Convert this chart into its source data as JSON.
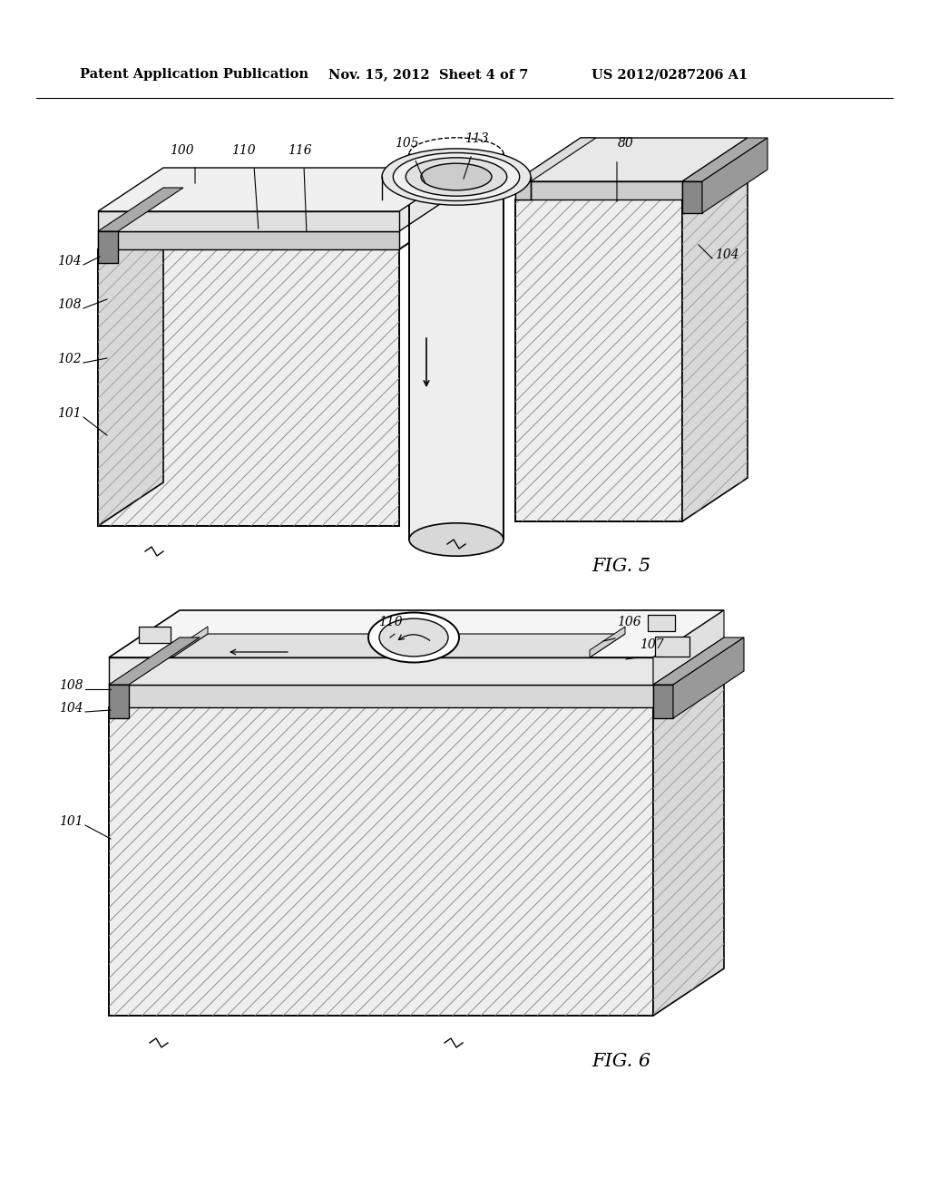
{
  "header_left": "Patent Application Publication",
  "header_mid": "Nov. 15, 2012  Sheet 4 of 7",
  "header_right": "US 2012/0287206 A1",
  "fig5_label": "FIG. 5",
  "fig6_label": "FIG. 6",
  "bg_color": "#ffffff",
  "lc": "#000000"
}
